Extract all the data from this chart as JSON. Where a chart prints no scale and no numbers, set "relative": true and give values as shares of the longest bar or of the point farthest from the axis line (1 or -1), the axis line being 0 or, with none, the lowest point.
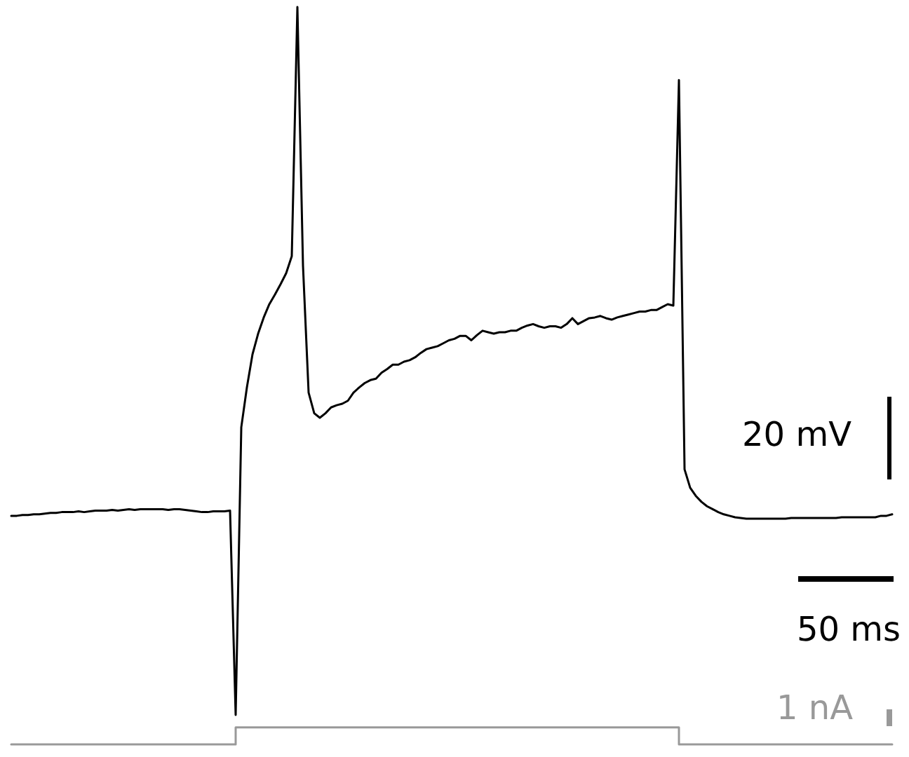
{
  "chart_data": {
    "type": "line",
    "relative": true,
    "annotations": [
      "20 mV",
      "50 ms",
      "1 nA"
    ],
    "categories": [
      null,
      null,
      null,
      null,
      null,
      null,
      null,
      null,
      null,
      null,
      null,
      null,
      null,
      null,
      null,
      null,
      null,
      null,
      null,
      null,
      null,
      null,
      null,
      null,
      null,
      null,
      null,
      null,
      null,
      null,
      null,
      null,
      null,
      null,
      null,
      null,
      null,
      null,
      null,
      null,
      null,
      null,
      null,
      null,
      null,
      null,
      null,
      null,
      null,
      null,
      null,
      null,
      null,
      null,
      null,
      null,
      null,
      null,
      null,
      null,
      null,
      null,
      null,
      null,
      null,
      null,
      null,
      null,
      null,
      null,
      null,
      null,
      null,
      null,
      null,
      null,
      null,
      null,
      null,
      null,
      null,
      null,
      null,
      null,
      null,
      null,
      null,
      null,
      null,
      null,
      null,
      null,
      null,
      null,
      null,
      null,
      null,
      null,
      null,
      null,
      null,
      null,
      null,
      null,
      null,
      null,
      null,
      null,
      null,
      null,
      null,
      null,
      null,
      null,
      null,
      null,
      null,
      null,
      null,
      null,
      null,
      null,
      null,
      null,
      null,
      null,
      null,
      null,
      null,
      null,
      null,
      null,
      null,
      null,
      null,
      null,
      null,
      null,
      null,
      null,
      null,
      null,
      null,
      null,
      null,
      null,
      null,
      null,
      null,
      null,
      null,
      null,
      null,
      null,
      null,
      null,
      null,
      null
    ],
    "series": [
      {
        "color": "#000000",
        "values": [
          0.31,
          0.31,
          0.311,
          0.311,
          0.312,
          0.312,
          0.313,
          0.314,
          0.314,
          0.315,
          0.315,
          0.315,
          0.316,
          0.315,
          0.316,
          0.317,
          0.317,
          0.317,
          0.318,
          0.317,
          0.318,
          0.319,
          0.318,
          0.319,
          0.319,
          0.319,
          0.319,
          0.319,
          0.318,
          0.319,
          0.319,
          0.318,
          0.317,
          0.316,
          0.315,
          0.315,
          0.316,
          0.316,
          0.316,
          0.317,
          0.04,
          0.43,
          0.484,
          0.529,
          0.557,
          0.579,
          0.597,
          0.61,
          0.624,
          0.639,
          0.662,
          1,
          0.649,
          0.477,
          0.449,
          0.443,
          0.449,
          0.457,
          0.46,
          0.462,
          0.466,
          0.477,
          0.484,
          0.49,
          0.494,
          0.496,
          0.504,
          0.509,
          0.515,
          0.515,
          0.519,
          0.521,
          0.525,
          0.531,
          0.536,
          0.538,
          0.54,
          0.544,
          0.548,
          0.55,
          0.554,
          0.554,
          0.548,
          0.555,
          0.561,
          0.559,
          0.557,
          0.559,
          0.559,
          0.561,
          0.561,
          0.565,
          0.568,
          0.57,
          0.567,
          0.565,
          0.567,
          0.567,
          0.565,
          0.57,
          0.578,
          0.57,
          0.574,
          0.578,
          0.579,
          0.581,
          0.578,
          0.576,
          0.579,
          0.581,
          0.583,
          0.585,
          0.587,
          0.587,
          0.589,
          0.589,
          0.593,
          0.597,
          0.595,
          0.901,
          0.373,
          0.348,
          0.337,
          0.329,
          0.323,
          0.319,
          0.315,
          0.312,
          0.31,
          0.308,
          0.307,
          0.306,
          0.306,
          0.306,
          0.306,
          0.306,
          0.306,
          0.306,
          0.306,
          0.307,
          0.307,
          0.307,
          0.307,
          0.307,
          0.307,
          0.307,
          0.307,
          0.307,
          0.308,
          0.308,
          0.308,
          0.308,
          0.308,
          0.308,
          0.308,
          0.31,
          0.31,
          0.312
        ]
      },
      {
        "type": "step",
        "color": "#999999",
        "values": [
          0,
          0,
          0,
          0,
          0,
          0,
          0,
          0,
          0,
          0,
          0,
          0,
          0,
          0,
          0,
          0,
          0,
          0,
          0,
          0,
          0,
          0,
          0,
          0,
          0,
          0,
          0,
          0,
          0,
          0,
          0,
          0,
          0,
          0,
          0,
          0,
          0,
          0,
          0,
          0,
          0.023,
          0.023,
          0.023,
          0.023,
          0.023,
          0.023,
          0.023,
          0.023,
          0.023,
          0.023,
          0.023,
          0.023,
          0.023,
          0.023,
          0.023,
          0.023,
          0.023,
          0.023,
          0.023,
          0.023,
          0.023,
          0.023,
          0.023,
          0.023,
          0.023,
          0.023,
          0.023,
          0.023,
          0.023,
          0.023,
          0.023,
          0.023,
          0.023,
          0.023,
          0.023,
          0.023,
          0.023,
          0.023,
          0.023,
          0.023,
          0.023,
          0.023,
          0.023,
          0.023,
          0.023,
          0.023,
          0.023,
          0.023,
          0.023,
          0.023,
          0.023,
          0.023,
          0.023,
          0.023,
          0.023,
          0.023,
          0.023,
          0.023,
          0.023,
          0.023,
          0.023,
          0.023,
          0.023,
          0.023,
          0.023,
          0.023,
          0.023,
          0.023,
          0.023,
          0.023,
          0.023,
          0.023,
          0.023,
          0.023,
          0.023,
          0.023,
          0.023,
          0.023,
          0.023,
          0,
          0,
          0,
          0,
          0,
          0,
          0,
          0,
          0,
          0,
          0,
          0,
          0,
          0,
          0,
          0,
          0,
          0,
          0,
          0,
          0,
          0,
          0,
          0,
          0,
          0,
          0,
          0,
          0,
          0,
          0,
          0,
          0,
          0,
          0,
          0,
          0,
          0,
          0
        ]
      }
    ]
  }
}
